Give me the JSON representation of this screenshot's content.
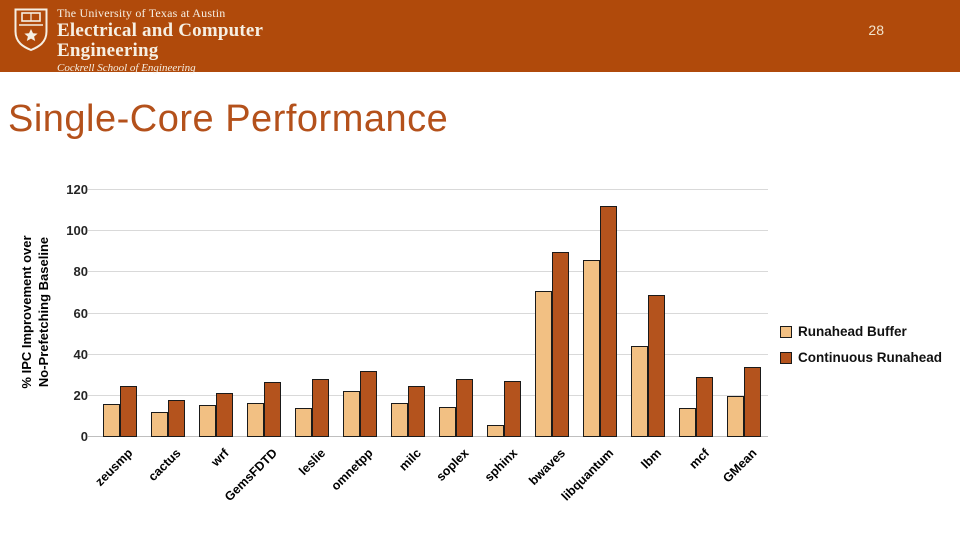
{
  "header": {
    "university": "The University of Texas at Austin",
    "department_line1": "Electrical and Computer",
    "department_line2": "Engineering",
    "school": "Cockrell School of Engineering",
    "banner_color": "#B04A0B",
    "logo_icon": "ut-shield-icon",
    "page_number": "28"
  },
  "slide": {
    "title": "Single-Core Performance",
    "title_color": "#B4511B"
  },
  "chart_data": {
    "type": "bar",
    "title": "",
    "categories": [
      "zeusmp",
      "cactus",
      "wrf",
      "GemsFDTD",
      "leslie",
      "omnetpp",
      "milc",
      "soplex",
      "sphinx",
      "bwaves",
      "libquantum",
      "lbm",
      "mcf",
      "GMean"
    ],
    "series": [
      {
        "name": "Runahead Buffer",
        "color": "#F2C083",
        "values": [
          16,
          12,
          15.5,
          16.5,
          14,
          22.5,
          16.5,
          14.5,
          6,
          71,
          86,
          44,
          14,
          20
        ]
      },
      {
        "name": "Continuous Runahead",
        "color": "#B4531D",
        "values": [
          25,
          18,
          21.5,
          26.5,
          28,
          32,
          25,
          28,
          27,
          90,
          112,
          69,
          29,
          34
        ]
      }
    ],
    "ylabel_line1": "% IPC Improvement over",
    "ylabel_line2": "No-Prefetching Baseline",
    "xlabel": "",
    "ylim": [
      0,
      120
    ],
    "yticks": [
      0,
      20,
      40,
      60,
      80,
      100,
      120
    ],
    "grid": true,
    "legend_position": "right"
  }
}
